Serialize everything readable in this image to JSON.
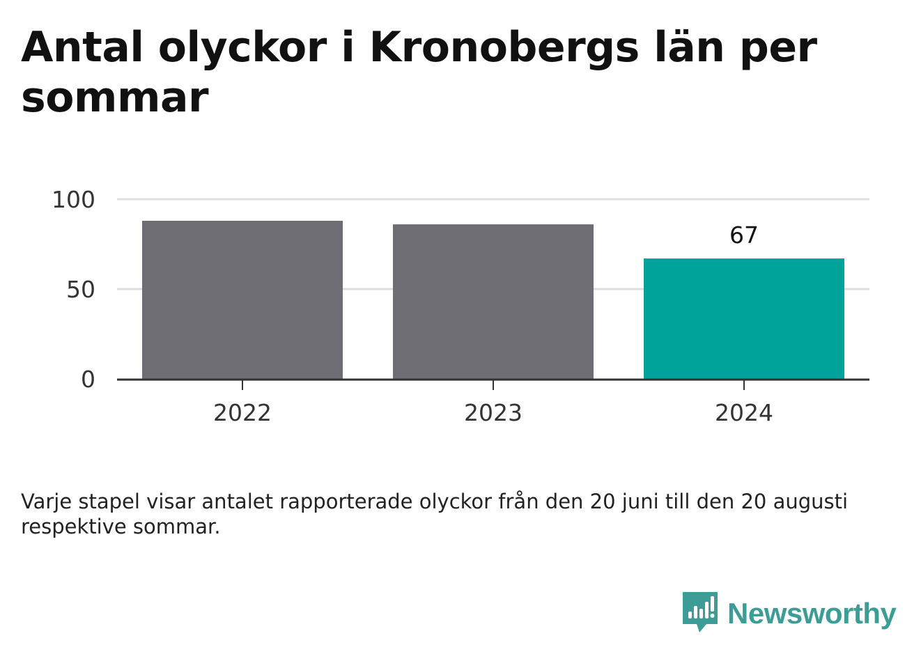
{
  "title": "Antal olyckor i Kronobergs län per sommar",
  "caption": "Varje stapel visar antalet rapporterade olyckor från den 20 juni till den 20 augusti respektive sommar.",
  "brand": {
    "name": "Newsworthy",
    "icon": "newsworthy-logo-icon",
    "color": "#3d9c96"
  },
  "colors": {
    "bar_default": "#6e6d73",
    "bar_highlight": "#00a39a",
    "grid": "#dddddd",
    "axis": "#333333"
  },
  "chart_data": {
    "type": "bar",
    "categories": [
      "2022",
      "2023",
      "2024"
    ],
    "values": [
      88,
      86,
      67
    ],
    "highlight_index": 2,
    "data_labels": [
      null,
      null,
      "67"
    ],
    "ylim": [
      0,
      100
    ],
    "yticks": [
      "0",
      "50",
      "100"
    ],
    "grid": true,
    "xlabel": "",
    "ylabel": ""
  }
}
